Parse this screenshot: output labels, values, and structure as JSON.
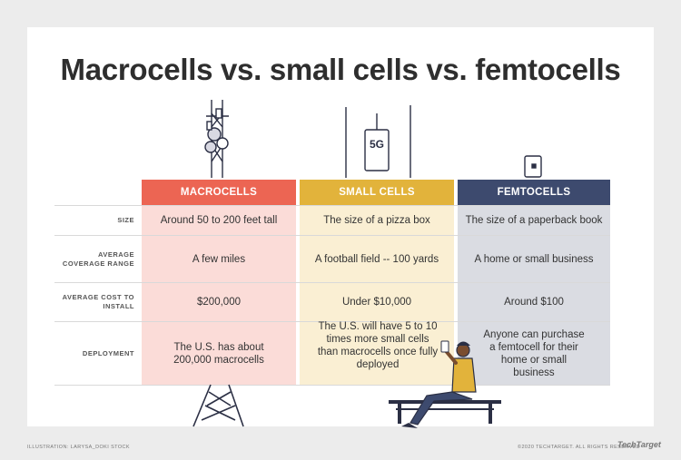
{
  "title": "Macrocells vs. small cells vs. femtocells",
  "colors": {
    "macro": "#ec6553",
    "small": "#e2b33b",
    "femto": "#3d4a6e"
  },
  "columns": [
    {
      "name": "MACROCELLS",
      "color": "#ec6553",
      "bg": "#fbdcd8"
    },
    {
      "name": "SMALL CELLS",
      "color": "#e2b33b",
      "bg": "#faefd3"
    },
    {
      "name": "FEMTOCELLS",
      "color": "#3d4a6e",
      "bg": "#dadce2"
    }
  ],
  "rows": [
    {
      "label": "SIZE",
      "values": [
        "Around 50 to 200 feet tall",
        "The size of a pizza box",
        "The size of a paperback book"
      ]
    },
    {
      "label": "AVERAGE COVERAGE RANGE",
      "values": [
        "A few miles",
        "A football field -- 100 yards",
        "A home or small business"
      ]
    },
    {
      "label": "AVERAGE COST TO INSTALL",
      "values": [
        "$200,000",
        "Under $10,000",
        "Around $100"
      ]
    },
    {
      "label": "DEPLOYMENT",
      "values": [
        "The U.S. has about 200,000 macrocells",
        "The U.S. will have 5 to 10 times more small cells than macrocells once fully deployed",
        "Anyone can purchase a femtocell for their home or small business"
      ]
    }
  ],
  "small_cell_badge": "5G",
  "footer": {
    "credit": "ILLUSTRATION: LARYSA_DOKI STOCK",
    "copyright": "©2020 TECHTARGET. ALL RIGHTS RESERVED",
    "logo": "TechTarget"
  }
}
